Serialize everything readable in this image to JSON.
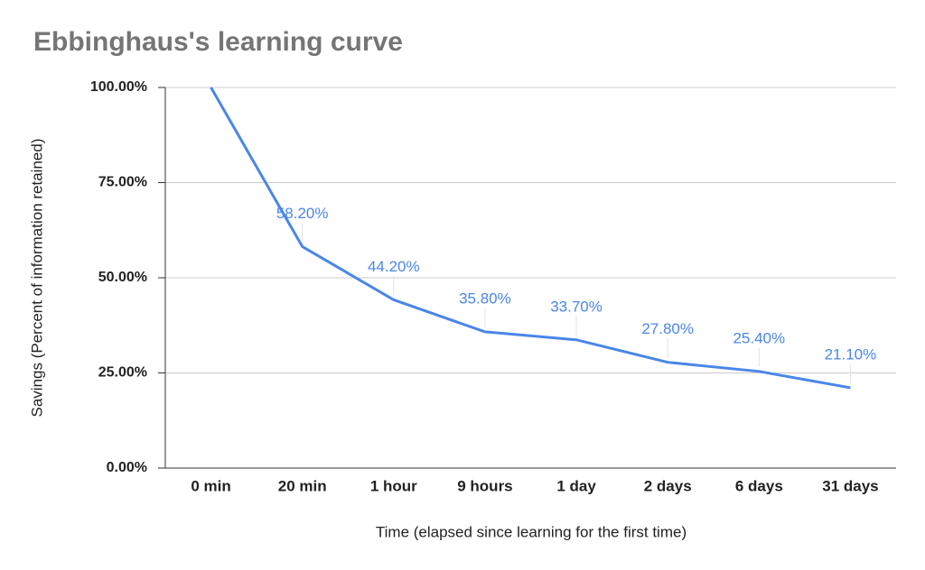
{
  "chart_data": {
    "type": "line",
    "title": "Ebbinghaus's learning curve",
    "x_label": "Time (elapsed since learning for the first time)",
    "y_label": "Savings (Percent of information retained)",
    "categories": [
      "0 min",
      "20 min",
      "1 hour",
      "9 hours",
      "1 day",
      "2 days",
      "6 days",
      "31 days"
    ],
    "series": [
      {
        "name": "Savings",
        "color": "#4a86e8",
        "values": [
          100,
          58.2,
          44.2,
          35.8,
          33.7,
          27.8,
          25.4,
          21.1
        ],
        "value_labels": [
          null,
          "58.20%",
          "44.20%",
          "35.80%",
          "33.70%",
          "27.80%",
          "25.40%",
          "21.10%"
        ]
      }
    ],
    "ylim": [
      0,
      100
    ],
    "yticks": [
      {
        "value": 0,
        "label": "0.00%"
      },
      {
        "value": 25,
        "label": "25.00%"
      },
      {
        "value": 50,
        "label": "50.00%"
      },
      {
        "value": 75,
        "label": "75.00%"
      },
      {
        "value": 100,
        "label": "100.00%"
      }
    ],
    "grid": true
  }
}
